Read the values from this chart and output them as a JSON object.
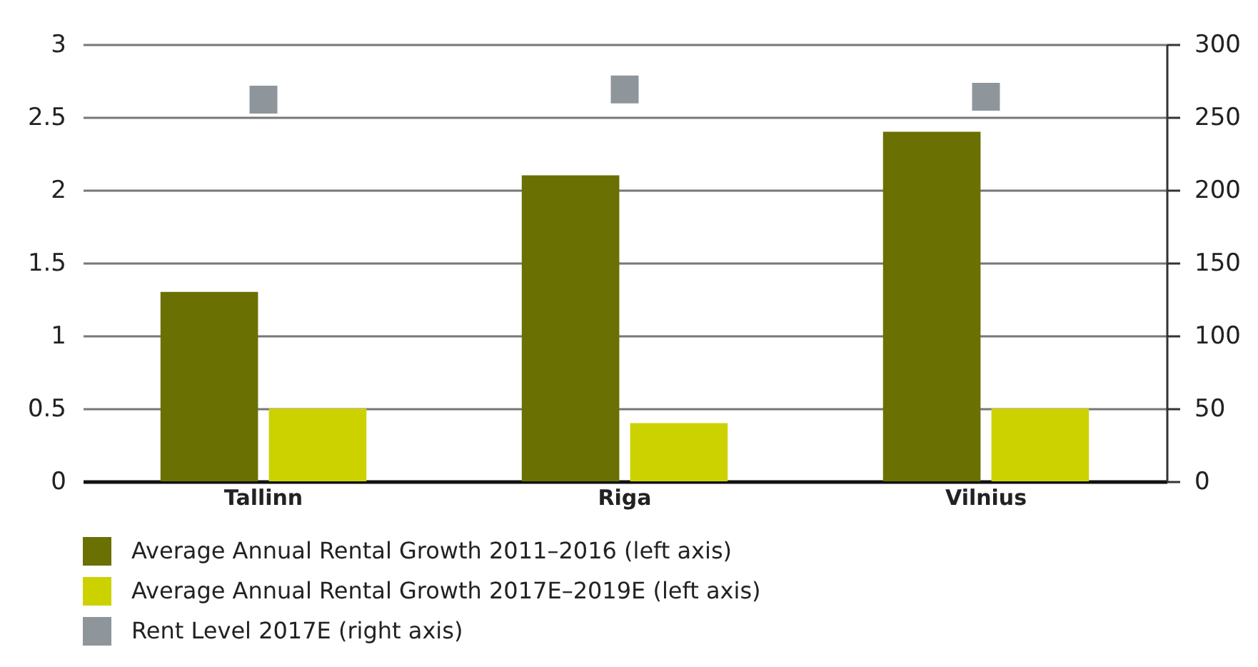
{
  "chart_data": {
    "type": "bar",
    "categories": [
      "Tallinn",
      "Riga",
      "Vilnius"
    ],
    "series": [
      {
        "name": "Average Annual Rental Growth 2011–2016 (left axis)",
        "color": "#6a7002",
        "values": [
          1.3,
          2.1,
          2.4
        ]
      },
      {
        "name": "Average Annual Rental Growth 2017E–2019E (left axis)",
        "color": "#cbd200",
        "values": [
          0.5,
          0.4,
          0.5
        ]
      },
      {
        "name": "Rent Level 2017E (right axis)",
        "type": "scatter",
        "axis": "y2",
        "color": "#8e969b",
        "values": [
          262,
          269,
          264
        ]
      }
    ],
    "ylim": [
      0,
      3
    ],
    "yticks": [
      0,
      0.5,
      1,
      1.5,
      2,
      2.5,
      3
    ],
    "y2lim": [
      0,
      300
    ],
    "y2ticks": [
      0,
      50,
      100,
      150,
      200,
      250,
      300
    ],
    "grid": "y",
    "legend": "bottom",
    "marker": "square"
  }
}
